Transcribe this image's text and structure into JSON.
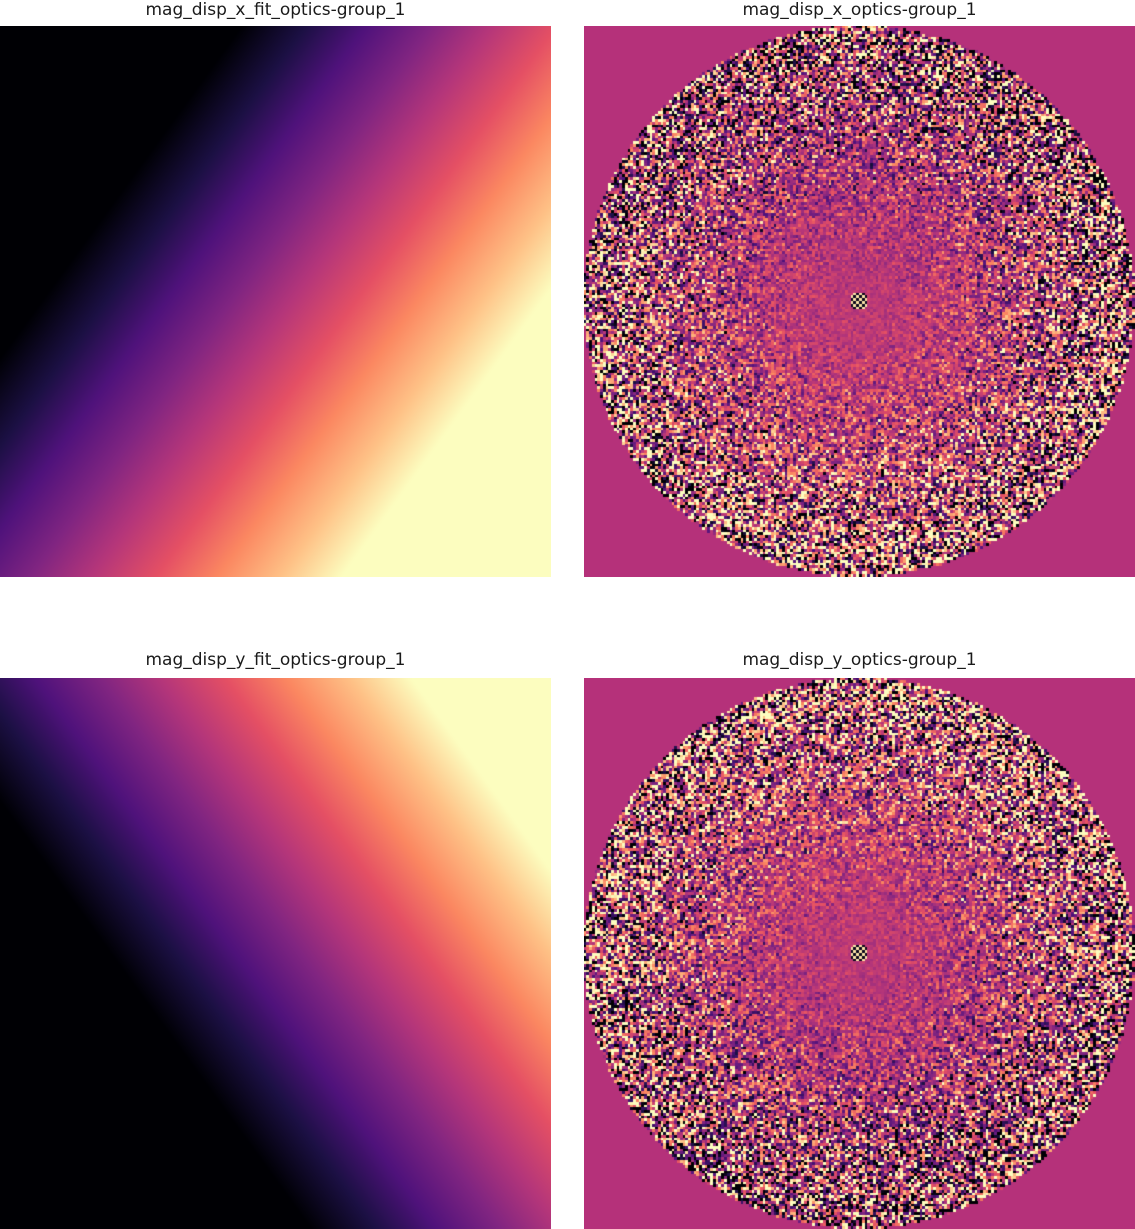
{
  "chart_data": [
    {
      "type": "heatmap",
      "title": "mag_disp_x_fit_optics-group_1",
      "colormap": "magma",
      "content": "fitted linear gradient",
      "gradient_direction": "increasing toward lower-right",
      "grid": false,
      "axes_visible": false
    },
    {
      "type": "heatmap",
      "title": "mag_disp_x_optics-group_1",
      "colormap": "magma",
      "content": "noisy circular-masked measurement",
      "mask_color": "#b5317a",
      "grid": false,
      "axes_visible": false
    },
    {
      "type": "heatmap",
      "title": "mag_disp_y_fit_optics-group_1",
      "colormap": "magma",
      "content": "fitted linear gradient",
      "gradient_direction": "increasing toward upper-right",
      "grid": false,
      "axes_visible": false
    },
    {
      "type": "heatmap",
      "title": "mag_disp_y_optics-group_1",
      "colormap": "magma",
      "content": "noisy circular-masked measurement",
      "mask_color": "#b5317a",
      "grid": false,
      "axes_visible": false
    }
  ]
}
